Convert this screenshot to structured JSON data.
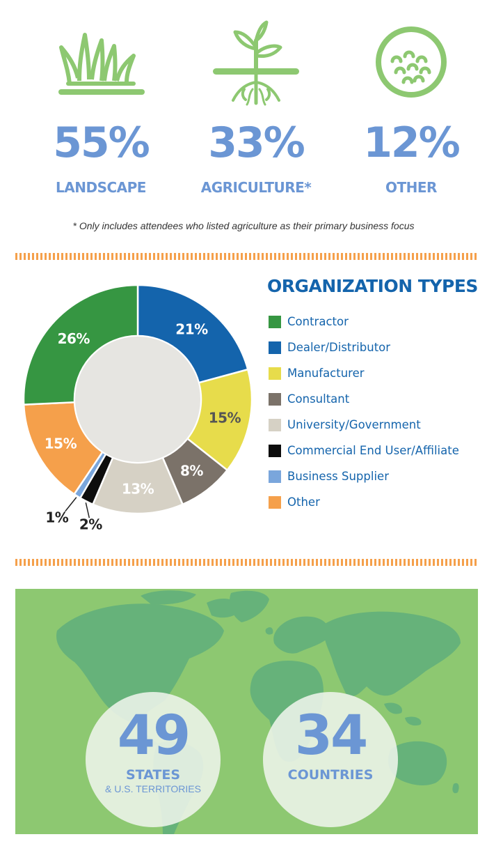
{
  "stats": [
    {
      "value": "55%",
      "label": "LANDSCAPE",
      "icon": "grass-icon"
    },
    {
      "value": "33%",
      "label": "AGRICULTURE*",
      "icon": "sprout-icon"
    },
    {
      "value": "12%",
      "label": "OTHER",
      "icon": "golf-ball-icon"
    }
  ],
  "footnote": "*  Only includes attendees who listed agriculture as their primary business focus",
  "colors": {
    "accent_blue": "#6b96d4",
    "title_blue": "#1464ac",
    "icon_green": "#8dc871",
    "divider_orange": "#f5a04b",
    "map_bg": "#8dc871",
    "land": "#66b27a"
  },
  "chart_data": {
    "type": "pie",
    "title": "ORGANIZATION TYPES",
    "donut": true,
    "slices": [
      {
        "label": "Dealer/Distributor",
        "value": 21,
        "display": "21%",
        "color": "#1464ac",
        "text_color": "#ffffff"
      },
      {
        "label": "Manufacturer",
        "value": 15,
        "display": "15%",
        "color": "#e7dc4b",
        "text_color": "#555555"
      },
      {
        "label": "Consultant",
        "value": 8,
        "display": "8%",
        "color": "#7b7269",
        "text_color": "#ffffff"
      },
      {
        "label": "University/Government",
        "value": 13,
        "display": "13%",
        "color": "#d6d1c5",
        "text_color": "#ffffff"
      },
      {
        "label": "Commercial End User/Affiliate",
        "value": 2,
        "display": "2%",
        "color": "#0d0d0d",
        "text_color": "#222222"
      },
      {
        "label": "Business Supplier",
        "value": 1,
        "display": "1%",
        "color": "#7aa6dc",
        "text_color": "#222222"
      },
      {
        "label": "Other",
        "value": 15,
        "display": "15%",
        "color": "#f5a04b",
        "text_color": "#ffffff"
      },
      {
        "label": "Contractor",
        "value": 26,
        "display": "26%",
        "color": "#369642",
        "text_color": "#ffffff"
      }
    ],
    "legend": [
      {
        "label": "Contractor",
        "color": "#369642"
      },
      {
        "label": "Dealer/Distributor",
        "color": "#1464ac"
      },
      {
        "label": "Manufacturer",
        "color": "#e7dc4b"
      },
      {
        "label": "Consultant",
        "color": "#7b7269"
      },
      {
        "label": "University/Government",
        "color": "#d6d1c5"
      },
      {
        "label": "Commercial End User/Affiliate",
        "color": "#0d0d0d"
      },
      {
        "label": "Business Supplier",
        "color": "#7aa6dc"
      },
      {
        "label": "Other",
        "color": "#f5a04b"
      }
    ],
    "legend_position": "right"
  },
  "reach": {
    "states": {
      "value": "49",
      "label": "STATES",
      "sub": "& U.S. TERRITORIES"
    },
    "countries": {
      "value": "34",
      "label": "COUNTRIES"
    }
  }
}
